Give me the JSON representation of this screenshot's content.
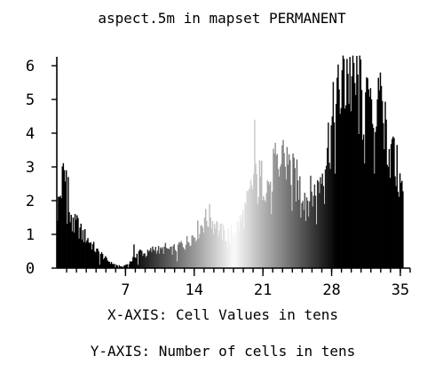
{
  "chart_data": {
    "type": "bar",
    "title": "aspect.5m in mapset PERMANENT",
    "xlabel": "X-AXIS: Cell Values in tens",
    "ylabel": "Y-AXIS: Number of cells in tens",
    "xlim": [
      0,
      36
    ],
    "ylim": [
      0,
      6
    ],
    "x_ticks": [
      7,
      14,
      21,
      28,
      35
    ],
    "y_ticks": [
      0,
      1,
      2,
      3,
      4,
      5,
      6
    ],
    "grid": false,
    "legend": "none",
    "bar_shading": "grayscale by cell value: black at low values, white near 18, black again at high values",
    "bin_width": 0.1,
    "profile": [
      [
        0.0,
        1.7
      ],
      [
        0.3,
        2.2
      ],
      [
        0.7,
        2.9
      ],
      [
        1.0,
        1.8
      ],
      [
        1.5,
        1.2
      ],
      [
        2.0,
        1.3
      ],
      [
        2.5,
        1.0
      ],
      [
        3.0,
        0.9
      ],
      [
        3.5,
        0.7
      ],
      [
        4.0,
        0.5
      ],
      [
        4.5,
        0.4
      ],
      [
        5.0,
        0.25
      ],
      [
        5.5,
        0.15
      ],
      [
        6.0,
        0.1
      ],
      [
        6.5,
        0.05
      ],
      [
        7.0,
        0.1
      ],
      [
        7.5,
        0.2
      ],
      [
        8.0,
        0.4
      ],
      [
        8.5,
        0.5
      ],
      [
        9.0,
        0.4
      ],
      [
        9.5,
        0.5
      ],
      [
        10.0,
        0.6
      ],
      [
        10.5,
        0.5
      ],
      [
        11.0,
        0.6
      ],
      [
        11.5,
        0.5
      ],
      [
        12.0,
        0.6
      ],
      [
        12.5,
        0.7
      ],
      [
        13.0,
        0.7
      ],
      [
        13.5,
        0.9
      ],
      [
        14.0,
        1.0
      ],
      [
        14.5,
        1.2
      ],
      [
        15.0,
        1.4
      ],
      [
        15.5,
        1.5
      ],
      [
        16.0,
        1.3
      ],
      [
        16.5,
        1.1
      ],
      [
        17.0,
        1.0
      ],
      [
        17.5,
        1.0
      ],
      [
        18.0,
        1.1
      ],
      [
        18.5,
        1.3
      ],
      [
        19.0,
        1.6
      ],
      [
        19.5,
        2.0
      ],
      [
        20.0,
        2.6
      ],
      [
        20.5,
        2.4
      ],
      [
        21.0,
        2.7
      ],
      [
        21.5,
        2.5
      ],
      [
        22.0,
        3.0
      ],
      [
        22.5,
        2.8
      ],
      [
        23.0,
        3.3
      ],
      [
        23.5,
        3.0
      ],
      [
        24.0,
        2.7
      ],
      [
        24.5,
        2.5
      ],
      [
        25.0,
        2.3
      ],
      [
        25.5,
        2.1
      ],
      [
        26.0,
        2.2
      ],
      [
        26.5,
        2.3
      ],
      [
        27.0,
        2.9
      ],
      [
        27.5,
        3.6
      ],
      [
        28.0,
        4.2
      ],
      [
        28.5,
        4.8
      ],
      [
        29.0,
        5.4
      ],
      [
        29.5,
        5.7
      ],
      [
        30.0,
        5.5
      ],
      [
        30.5,
        5.3
      ],
      [
        31.0,
        4.9
      ],
      [
        31.5,
        4.6
      ],
      [
        32.0,
        4.2
      ],
      [
        32.5,
        4.5
      ],
      [
        33.0,
        4.6
      ],
      [
        33.5,
        4.1
      ],
      [
        34.0,
        3.3
      ],
      [
        34.5,
        3.0
      ],
      [
        35.0,
        2.4
      ],
      [
        35.2,
        2.3
      ]
    ],
    "spikes": [
      [
        0.9,
        2.9
      ],
      [
        1.1,
        2.7
      ],
      [
        1.6,
        1.5
      ],
      [
        7.8,
        0.7
      ],
      [
        15.0,
        1.5
      ],
      [
        15.6,
        1.5
      ],
      [
        16.2,
        1.4
      ],
      [
        19.2,
        1.8
      ],
      [
        20.1,
        4.4
      ],
      [
        20.6,
        3.2
      ],
      [
        22.2,
        3.6
      ],
      [
        23.0,
        3.8
      ],
      [
        23.4,
        3.1
      ],
      [
        23.7,
        3.2
      ],
      [
        29.2,
        6.2
      ],
      [
        29.5,
        6.2
      ],
      [
        29.8,
        5.5
      ],
      [
        30.2,
        5.8
      ],
      [
        30.6,
        5.6
      ],
      [
        31.0,
        5.2
      ],
      [
        31.7,
        5.3
      ],
      [
        32.0,
        5.0
      ],
      [
        32.6,
        5.0
      ],
      [
        33.0,
        5.4
      ],
      [
        33.4,
        4.5
      ],
      [
        34.2,
        3.9
      ],
      [
        34.6,
        3.2
      ]
    ],
    "dips": [
      [
        4.3,
        0.1
      ],
      [
        5.9,
        0.02
      ],
      [
        6.2,
        0.0
      ],
      [
        6.7,
        0.0
      ],
      [
        7.2,
        0.0
      ],
      [
        8.2,
        0.1
      ],
      [
        12.2,
        0.2
      ],
      [
        17.3,
        0.6
      ],
      [
        17.6,
        0.7
      ],
      [
        21.8,
        1.6
      ],
      [
        23.9,
        1.7
      ],
      [
        24.8,
        1.5
      ],
      [
        25.3,
        1.4
      ],
      [
        26.4,
        1.3
      ],
      [
        27.2,
        1.9
      ],
      [
        28.3,
        2.8
      ],
      [
        31.3,
        3.1
      ],
      [
        32.3,
        2.8
      ]
    ]
  }
}
